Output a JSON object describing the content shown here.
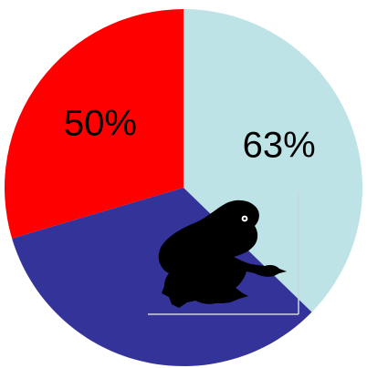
{
  "chart_data": {
    "type": "pie",
    "slices": [
      {
        "label": "63%",
        "value": 63,
        "color": "#bde3e6"
      },
      {
        "label": "",
        "value": 56,
        "color": "#333399"
      },
      {
        "label": "50%",
        "value": 50,
        "color": "#ff0000"
      }
    ],
    "legend": "none"
  },
  "overlay": {
    "icon": "frog-icon"
  }
}
